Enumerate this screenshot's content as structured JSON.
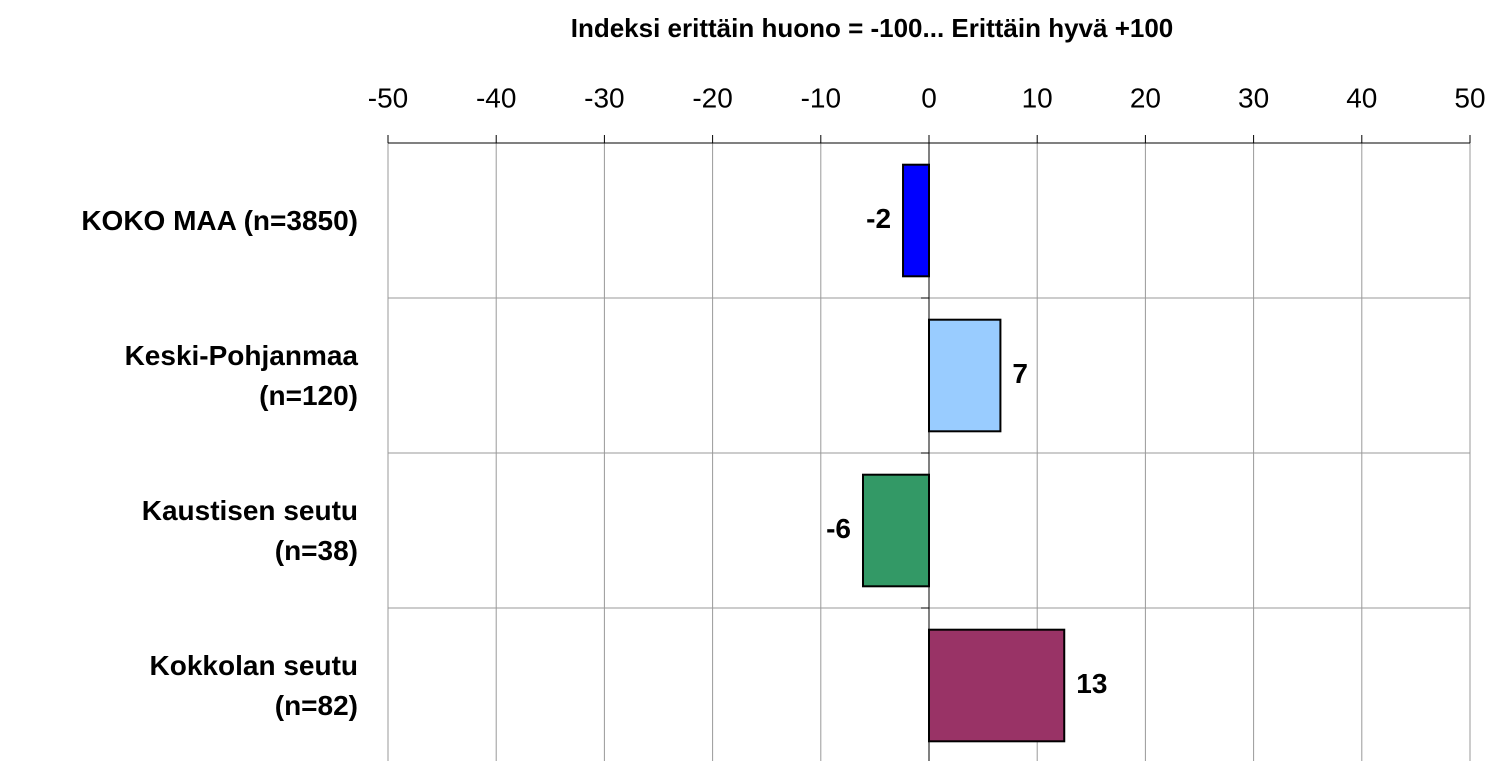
{
  "chart_data": {
    "type": "bar",
    "orientation": "horizontal",
    "title": "Indeksi erittäin huono = -100... Erittäin hyvä +100",
    "categories": [
      "KOKO MAA (n=3850)",
      "Keski-Pohjanmaa\n(n=120)",
      "Kaustisen seutu\n(n=38)",
      "Kokkolan seutu\n(n=82)"
    ],
    "values": [
      -2.4,
      6.6,
      -6.1,
      12.5
    ],
    "value_labels": [
      "-2",
      "7",
      "-6",
      "13"
    ],
    "colors": [
      "#0000ff",
      "#99ccff",
      "#339966",
      "#993366"
    ],
    "xlim": [
      -50,
      50
    ],
    "xticks": [
      -50,
      -40,
      -30,
      -20,
      -10,
      0,
      10,
      20,
      30,
      40,
      50
    ],
    "grid": true
  }
}
